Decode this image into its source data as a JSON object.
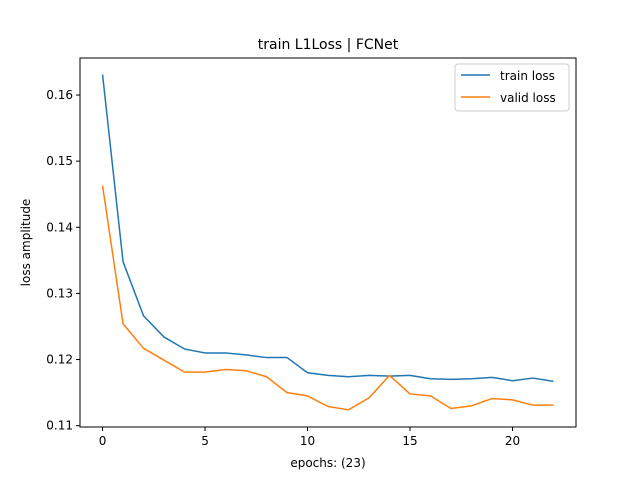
{
  "chart_data": {
    "type": "line",
    "title": "train L1Loss | FCNet",
    "xlabel": "epochs: (23)",
    "ylabel": "loss amplitude",
    "xlim": [
      -1.1,
      23.1
    ],
    "ylim": [
      0.1098,
      0.1656
    ],
    "x_ticks": [
      {
        "value": 0,
        "label": "0"
      },
      {
        "value": 5,
        "label": "5"
      },
      {
        "value": 10,
        "label": "10"
      },
      {
        "value": 15,
        "label": "15"
      },
      {
        "value": 20,
        "label": "20"
      }
    ],
    "y_ticks": [
      {
        "value": 0.11,
        "label": "0.11"
      },
      {
        "value": 0.12,
        "label": "0.12"
      },
      {
        "value": 0.13,
        "label": "0.13"
      },
      {
        "value": 0.14,
        "label": "0.14"
      },
      {
        "value": 0.15,
        "label": "0.15"
      },
      {
        "value": 0.16,
        "label": "0.16"
      }
    ],
    "grid": false,
    "legend_position": "top-right",
    "x": [
      0,
      1,
      2,
      3,
      4,
      5,
      6,
      7,
      8,
      9,
      10,
      11,
      12,
      13,
      14,
      15,
      16,
      17,
      18,
      19,
      20,
      21,
      22
    ],
    "series": [
      {
        "name": "train loss",
        "color": "#1f77b4",
        "values": [
          0.1631,
          0.1348,
          0.1266,
          0.1234,
          0.1216,
          0.121,
          0.121,
          0.1207,
          0.1203,
          0.1203,
          0.118,
          0.1176,
          0.1174,
          0.1176,
          0.1175,
          0.1176,
          0.1171,
          0.117,
          0.1171,
          0.1173,
          0.1168,
          0.1172,
          0.1167
        ]
      },
      {
        "name": "valid loss",
        "color": "#ff7f0e",
        "values": [
          0.1463,
          0.1254,
          0.1217,
          0.1199,
          0.1181,
          0.1181,
          0.1185,
          0.1183,
          0.1174,
          0.115,
          0.1145,
          0.1129,
          0.1124,
          0.1142,
          0.1176,
          0.1148,
          0.1145,
          0.1126,
          0.113,
          0.1141,
          0.1139,
          0.1131,
          0.1131
        ]
      }
    ]
  }
}
